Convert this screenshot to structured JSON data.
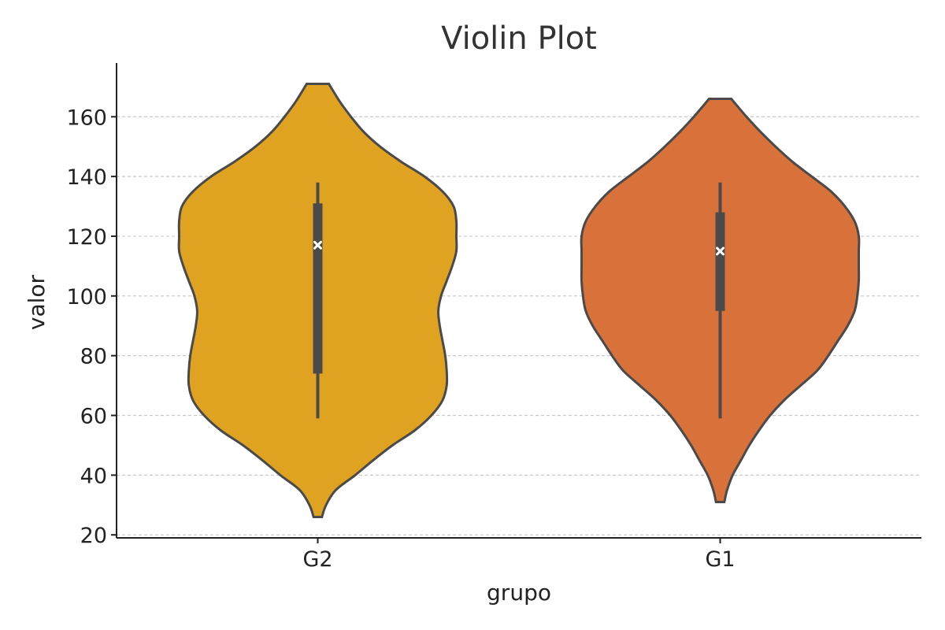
{
  "chart_data": {
    "type": "violin",
    "title": "Violin Plot",
    "xlabel": "grupo",
    "ylabel": "valor",
    "ylim": [
      19,
      178
    ],
    "yticks": [
      20,
      40,
      60,
      80,
      100,
      120,
      140,
      160
    ],
    "grid": "horizontal-dashed",
    "categories": [
      "G2",
      "G1"
    ],
    "series": [
      {
        "category": "G2",
        "color": "#e0a321",
        "min": 26,
        "max": 171,
        "whisker_low": 59,
        "whisker_high": 138,
        "q1": 74,
        "q3": 131,
        "median": 117,
        "density_profile": [
          {
            "y": 26,
            "half_width": 0.03
          },
          {
            "y": 30,
            "half_width": 0.06
          },
          {
            "y": 35,
            "half_width": 0.13
          },
          {
            "y": 40,
            "half_width": 0.27
          },
          {
            "y": 45,
            "half_width": 0.4
          },
          {
            "y": 50,
            "half_width": 0.54
          },
          {
            "y": 55,
            "half_width": 0.7
          },
          {
            "y": 60,
            "half_width": 0.82
          },
          {
            "y": 65,
            "half_width": 0.9
          },
          {
            "y": 70,
            "half_width": 0.93
          },
          {
            "y": 75,
            "half_width": 0.93
          },
          {
            "y": 80,
            "half_width": 0.92
          },
          {
            "y": 85,
            "half_width": 0.9
          },
          {
            "y": 90,
            "half_width": 0.88
          },
          {
            "y": 95,
            "half_width": 0.87
          },
          {
            "y": 100,
            "half_width": 0.89
          },
          {
            "y": 105,
            "half_width": 0.93
          },
          {
            "y": 110,
            "half_width": 0.97
          },
          {
            "y": 115,
            "half_width": 1.0
          },
          {
            "y": 120,
            "half_width": 1.0
          },
          {
            "y": 125,
            "half_width": 1.0
          },
          {
            "y": 130,
            "half_width": 0.98
          },
          {
            "y": 135,
            "half_width": 0.9
          },
          {
            "y": 140,
            "half_width": 0.77
          },
          {
            "y": 145,
            "half_width": 0.6
          },
          {
            "y": 150,
            "half_width": 0.45
          },
          {
            "y": 155,
            "half_width": 0.33
          },
          {
            "y": 160,
            "half_width": 0.24
          },
          {
            "y": 165,
            "half_width": 0.16
          },
          {
            "y": 171,
            "half_width": 0.08
          }
        ]
      },
      {
        "category": "G1",
        "color": "#d9713a",
        "min": 31,
        "max": 166,
        "whisker_low": 59,
        "whisker_high": 138,
        "q1": 95,
        "q3": 128,
        "median": 115,
        "density_profile": [
          {
            "y": 31,
            "half_width": 0.03
          },
          {
            "y": 35,
            "half_width": 0.05
          },
          {
            "y": 40,
            "half_width": 0.09
          },
          {
            "y": 45,
            "half_width": 0.15
          },
          {
            "y": 50,
            "half_width": 0.21
          },
          {
            "y": 55,
            "half_width": 0.28
          },
          {
            "y": 60,
            "half_width": 0.36
          },
          {
            "y": 65,
            "half_width": 0.46
          },
          {
            "y": 70,
            "half_width": 0.58
          },
          {
            "y": 75,
            "half_width": 0.7
          },
          {
            "y": 80,
            "half_width": 0.78
          },
          {
            "y": 85,
            "half_width": 0.85
          },
          {
            "y": 90,
            "half_width": 0.92
          },
          {
            "y": 95,
            "half_width": 0.97
          },
          {
            "y": 100,
            "half_width": 0.99
          },
          {
            "y": 105,
            "half_width": 1.0
          },
          {
            "y": 110,
            "half_width": 1.0
          },
          {
            "y": 115,
            "half_width": 1.0
          },
          {
            "y": 120,
            "half_width": 1.0
          },
          {
            "y": 125,
            "half_width": 0.97
          },
          {
            "y": 130,
            "half_width": 0.9
          },
          {
            "y": 135,
            "half_width": 0.8
          },
          {
            "y": 140,
            "half_width": 0.66
          },
          {
            "y": 145,
            "half_width": 0.52
          },
          {
            "y": 150,
            "half_width": 0.4
          },
          {
            "y": 155,
            "half_width": 0.29
          },
          {
            "y": 160,
            "half_width": 0.19
          },
          {
            "y": 166,
            "half_width": 0.08
          }
        ]
      }
    ]
  }
}
